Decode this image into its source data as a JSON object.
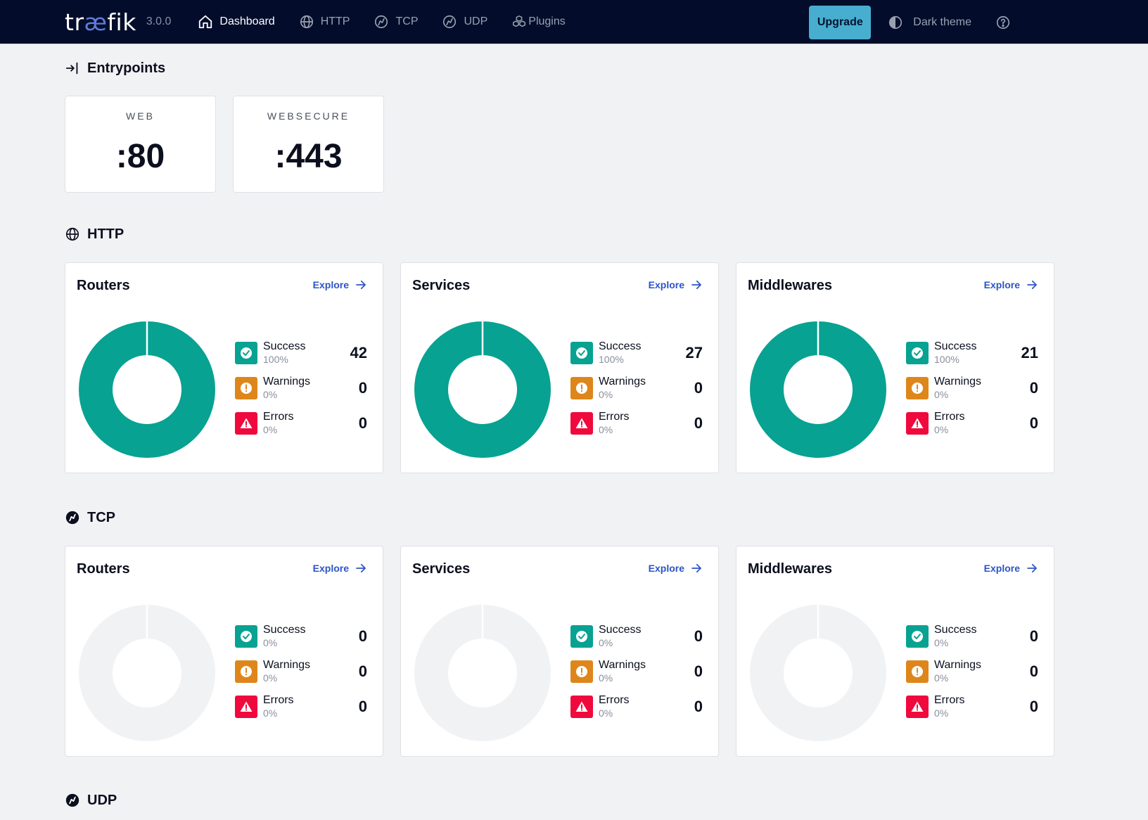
{
  "header": {
    "logo_prefix": "tr",
    "logo_ae": "æ",
    "logo_suffix": "fik",
    "version": "3.0.0",
    "nav": [
      {
        "label": "Dashboard",
        "icon": "home-icon",
        "active": true
      },
      {
        "label": "HTTP",
        "icon": "globe-icon",
        "active": false
      },
      {
        "label": "TCP",
        "icon": "tcp-icon",
        "active": false
      },
      {
        "label": "UDP",
        "icon": "udp-icon",
        "active": false
      },
      {
        "label": "Plugins",
        "icon": "plugins-icon",
        "active": false
      }
    ],
    "upgrade_label": "Upgrade",
    "theme_label": "Dark theme"
  },
  "entrypoints": {
    "title": "Entrypoints",
    "items": [
      {
        "name": "WEB",
        "port": ":80"
      },
      {
        "name": "WEBSECURE",
        "port": ":443"
      }
    ]
  },
  "http": {
    "title": "HTTP",
    "cards": [
      {
        "title": "Routers",
        "explore": "Explore",
        "success": {
          "label": "Success",
          "pct": "100%",
          "count": "42"
        },
        "warnings": {
          "label": "Warnings",
          "pct": "0%",
          "count": "0"
        },
        "errors": {
          "label": "Errors",
          "pct": "0%",
          "count": "0"
        },
        "success_fraction": 1
      },
      {
        "title": "Services",
        "explore": "Explore",
        "success": {
          "label": "Success",
          "pct": "100%",
          "count": "27"
        },
        "warnings": {
          "label": "Warnings",
          "pct": "0%",
          "count": "0"
        },
        "errors": {
          "label": "Errors",
          "pct": "0%",
          "count": "0"
        },
        "success_fraction": 1
      },
      {
        "title": "Middlewares",
        "explore": "Explore",
        "success": {
          "label": "Success",
          "pct": "100%",
          "count": "21"
        },
        "warnings": {
          "label": "Warnings",
          "pct": "0%",
          "count": "0"
        },
        "errors": {
          "label": "Errors",
          "pct": "0%",
          "count": "0"
        },
        "success_fraction": 1
      }
    ]
  },
  "tcp": {
    "title": "TCP",
    "cards": [
      {
        "title": "Routers",
        "explore": "Explore",
        "success": {
          "label": "Success",
          "pct": "0%",
          "count": "0"
        },
        "warnings": {
          "label": "Warnings",
          "pct": "0%",
          "count": "0"
        },
        "errors": {
          "label": "Errors",
          "pct": "0%",
          "count": "0"
        },
        "success_fraction": 0
      },
      {
        "title": "Services",
        "explore": "Explore",
        "success": {
          "label": "Success",
          "pct": "0%",
          "count": "0"
        },
        "warnings": {
          "label": "Warnings",
          "pct": "0%",
          "count": "0"
        },
        "errors": {
          "label": "Errors",
          "pct": "0%",
          "count": "0"
        },
        "success_fraction": 0
      },
      {
        "title": "Middlewares",
        "explore": "Explore",
        "success": {
          "label": "Success",
          "pct": "0%",
          "count": "0"
        },
        "warnings": {
          "label": "Warnings",
          "pct": "0%",
          "count": "0"
        },
        "errors": {
          "label": "Errors",
          "pct": "0%",
          "count": "0"
        },
        "success_fraction": 0
      }
    ]
  },
  "udp": {
    "title": "UDP"
  },
  "colors": {
    "success": "#07a291",
    "warning": "#de861a",
    "error": "#f0093d",
    "empty": "#f1f2f4"
  }
}
